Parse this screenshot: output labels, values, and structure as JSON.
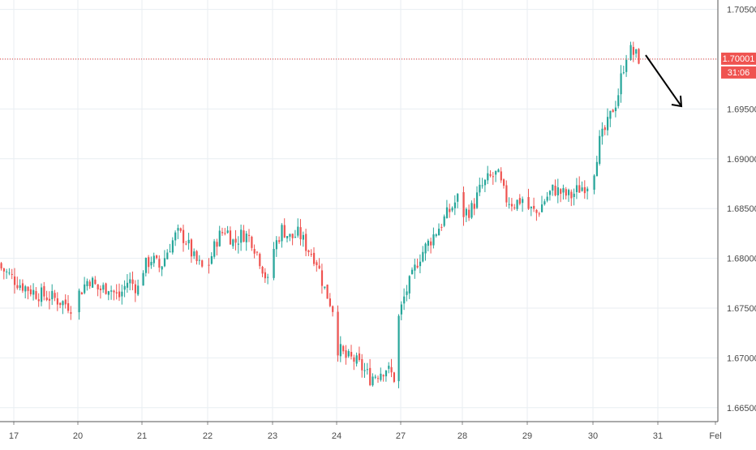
{
  "colors": {
    "up": "#26a69a",
    "down": "#ef5350",
    "grid": "#e8eef2",
    "axis_text": "#4a4a4a",
    "price_line": "#e53935",
    "price_tag_bg": "#ef5350",
    "price_tag_text": "#ffffff",
    "arrow": "#000000"
  },
  "chart_data": {
    "type": "candlestick",
    "ylim": [
      1.6625,
      1.7075
    ],
    "grid": true,
    "x_axis": {
      "tick_labels": [
        "17",
        "20",
        "21",
        "22",
        "23",
        "24",
        "27",
        "28",
        "29",
        "30",
        "31",
        "Fel"
      ]
    },
    "y_axis": {
      "tick_values": [
        1.665,
        1.67,
        1.675,
        1.68,
        1.685,
        1.69,
        1.695,
        1.7,
        1.705
      ],
      "tick_labels": [
        "1.66500",
        "1.67000",
        "1.67500",
        "1.68000",
        "1.68500",
        "1.69000",
        "1.69500",
        "1.70000",
        "1.70500"
      ]
    },
    "current_price": {
      "value": 1.70001,
      "label": "1.70001",
      "countdown": "31:06"
    },
    "annotation": {
      "type": "arrow",
      "direction": "down",
      "from": {
        "day": "30",
        "price": 1.7
      },
      "to": {
        "day": "31",
        "price": 1.695
      }
    },
    "series": [
      {
        "sessions": [
          {
            "label": "17",
            "closes": [
              1.679,
              1.6775,
              1.6765,
              1.676,
              1.6752
            ]
          },
          {
            "label": "20",
            "closes": [
              1.6765,
              1.678,
              1.6768,
              1.6772,
              1.676,
              1.6778,
              1.677
            ]
          },
          {
            "label": "21",
            "closes": [
              1.679,
              1.68,
              1.679,
              1.681,
              1.6825,
              1.682,
              1.68,
              1.679
            ]
          },
          {
            "label": "22",
            "closes": [
              1.6795,
              1.682,
              1.683,
              1.6815,
              1.6825,
              1.682,
              1.68,
              1.6775
            ]
          },
          {
            "label": "23",
            "closes": [
              1.681,
              1.683,
              1.682,
              1.6825,
              1.681,
              1.68,
              1.677,
              1.675
            ]
          },
          {
            "label": "24",
            "closes": [
              1.671,
              1.67,
              1.6698,
              1.669,
              1.668,
              1.6685,
              1.669,
              1.668
            ]
          },
          {
            "label": "27",
            "closes": [
              1.674,
              1.6765,
              1.678,
              1.68,
              1.681,
              1.682,
              1.683,
              1.684,
              1.685,
              1.686
            ]
          },
          {
            "label": "28",
            "closes": [
              1.6845,
              1.685,
              1.687,
              1.688,
              1.6885,
              1.686,
              1.6855,
              1.686
            ]
          },
          {
            "label": "29",
            "closes": [
              1.685,
              1.6845,
              1.686,
              1.687,
              1.6865,
              1.6862,
              1.687,
              1.6875
            ]
          },
          {
            "label": "30",
            "closes": [
              1.689,
              1.6915,
              1.6925,
              1.6935,
              1.695,
              1.696,
              1.6985,
              1.7005
            ]
          },
          {
            "label": "31",
            "closes": [
              1.7008,
              1.7001
            ]
          }
        ]
      }
    ]
  }
}
